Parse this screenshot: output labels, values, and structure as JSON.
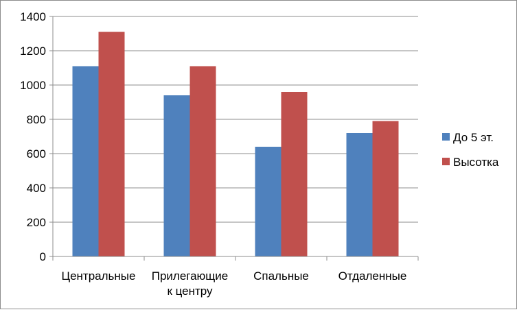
{
  "chart_data": {
    "type": "bar",
    "title": "",
    "xlabel": "",
    "ylabel": "",
    "categories": [
      [
        "Центральные"
      ],
      [
        "Прилегающие",
        "к центру"
      ],
      [
        "Спальные"
      ],
      [
        "Отдаленные"
      ]
    ],
    "series": [
      {
        "name": "До 5 эт.",
        "color": "#4F81BD",
        "values": [
          1110,
          940,
          640,
          720
        ]
      },
      {
        "name": "Высотка",
        "color": "#C0504D",
        "values": [
          1310,
          1110,
          960,
          790
        ]
      }
    ],
    "ylim": [
      0,
      1400
    ],
    "yticks": [
      0,
      200,
      400,
      600,
      800,
      1000,
      1200,
      1400
    ],
    "grid": true,
    "legend_position": "right"
  }
}
